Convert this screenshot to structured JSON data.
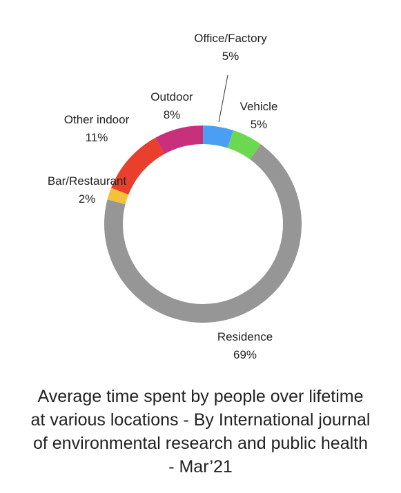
{
  "chart_data": {
    "type": "pie",
    "donut": true,
    "categories": [
      "Office/Factory",
      "Vehicle",
      "Residence",
      "Bar/Restaurant",
      "Other indoor",
      "Outdoor"
    ],
    "values": [
      5,
      5,
      69,
      2,
      11,
      8
    ],
    "value_labels": [
      "5%",
      "5%",
      "69%",
      "2%",
      "11%",
      "8%"
    ],
    "colors": [
      "#4a9ff5",
      "#6cd84f",
      "#969696",
      "#f3c13a",
      "#e8402c",
      "#c9307c"
    ],
    "start_angle_deg": 0,
    "direction": "clockwise",
    "legend": "none"
  },
  "caption": {
    "lines": [
      "Average time spent by people  over lifetime",
      "at various locations - By International journal",
      "of environmental research and public health",
      "- Mar’21"
    ]
  }
}
